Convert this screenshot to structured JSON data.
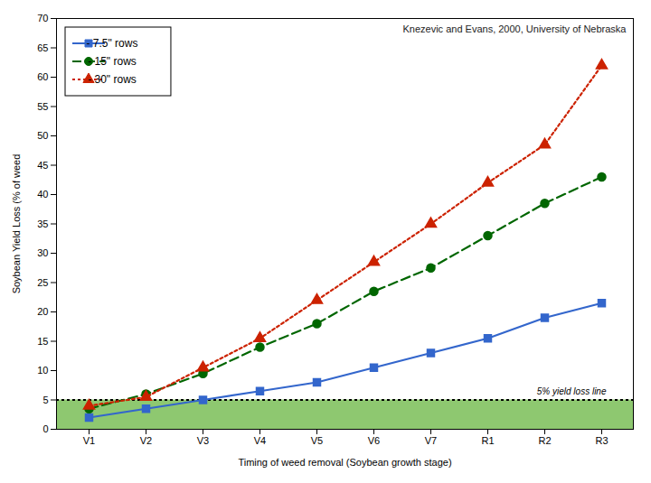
{
  "chart_data": {
    "type": "line",
    "title": "Knezevic and Evans, 2000, University of Nebraska",
    "xlabel": "Timing of weed removal (Soybean growth stage)",
    "ylabel": "Soybean Yield Loss (% of weed",
    "categories": [
      "V1",
      "V2",
      "V3",
      "V4",
      "V5",
      "V6",
      "V7",
      "R1",
      "R2",
      "R3"
    ],
    "series": [
      {
        "name": "- 7.5\" rows",
        "color": "#3366CC",
        "marker": "square",
        "line_style": "solid",
        "values": [
          2.0,
          3.5,
          5.0,
          6.5,
          8.0,
          10.5,
          13.0,
          15.5,
          19.0,
          21.5
        ]
      },
      {
        "name": "- 15\" rows",
        "color": "#006600",
        "marker": "circle",
        "line_style": "dashed",
        "values": [
          3.5,
          6.0,
          9.5,
          14.0,
          18.0,
          23.5,
          27.5,
          33.0,
          38.5,
          43.0
        ]
      },
      {
        "name": "- 30\" rows",
        "color": "#CC2200",
        "marker": "triangle",
        "line_style": "dotted",
        "values": [
          4.0,
          5.5,
          10.5,
          15.5,
          22.0,
          28.5,
          35.0,
          42.0,
          48.5,
          62.0
        ]
      }
    ],
    "ylim": [
      0,
      70
    ],
    "yticks": [
      0,
      5,
      10,
      15,
      20,
      25,
      30,
      35,
      40,
      45,
      50,
      55,
      60,
      65,
      70
    ],
    "grid": false,
    "legend": "upper left",
    "threshold": {
      "y": 5,
      "label": "5% yield loss line",
      "fill_color": "#8EC870"
    }
  }
}
